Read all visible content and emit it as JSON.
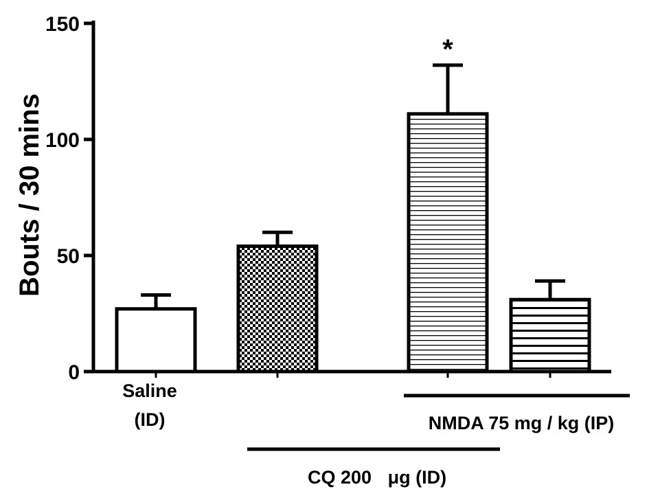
{
  "chart_data": {
    "type": "bar",
    "title": "",
    "ylabel": "Bouts / 30 mins",
    "xlabel": "",
    "ylim": [
      0,
      150
    ],
    "yticks": [
      0,
      50,
      100,
      150
    ],
    "categories": [
      "Saline (ID)",
      "CQ 200 µg (ID)",
      "CQ 200 µg (ID) + NMDA 75 mg / kg (IP)",
      "NMDA 75 mg / kg (IP)"
    ],
    "values": [
      27,
      54,
      111,
      31
    ],
    "errors": [
      6,
      6,
      21,
      8
    ],
    "patterns": [
      "none",
      "checker",
      "fine-horizontal",
      "horizontal"
    ],
    "significance": [
      "",
      "",
      "*",
      ""
    ],
    "labels": {
      "saline_line1": "Saline",
      "saline_line2": "(ID)",
      "nmda": "NMDA 75 mg / kg (IP)",
      "cq_part1": "CQ 200",
      "cq_unit": "μg (ID)"
    }
  }
}
